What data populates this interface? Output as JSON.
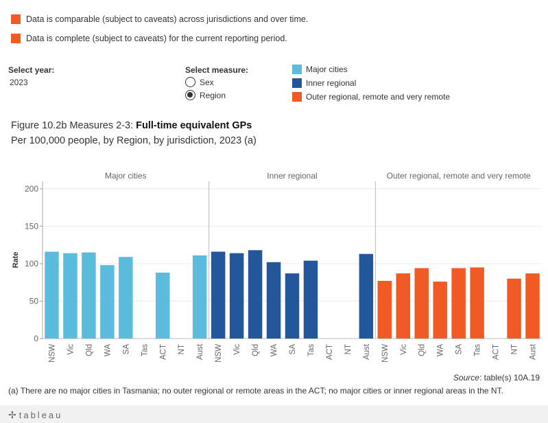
{
  "caveats": [
    "Data is comparable (subject to caveats) across jurisdictions and over time.",
    "Data is complete (subject to caveats) for the current reporting period."
  ],
  "caveat_color": "#f15a24",
  "controls": {
    "year_label": "Select year:",
    "year_value": "2023",
    "measure_label": "Select measure:",
    "measure_options": [
      "Sex",
      "Region"
    ],
    "measure_selected": "Region"
  },
  "legend": [
    {
      "label": "Major cities",
      "color": "#5bbcdd"
    },
    {
      "label": "Inner regional",
      "color": "#24569b"
    },
    {
      "label": "Outer regional, remote and very remote",
      "color": "#f15a24"
    }
  ],
  "figure": {
    "title_prefix": "Figure 10.2b Measures 2-3: ",
    "title_bold": "Full-time equivalent GPs",
    "subtitle": "Per 100,000 people, by Region, by jurisdiction, 2023 (a)"
  },
  "chart_data": {
    "type": "bar",
    "ylabel": "Rate",
    "ylim": [
      0,
      210
    ],
    "yticks": [
      0,
      50,
      100,
      150,
      200
    ],
    "categories": [
      "NSW",
      "Vic",
      "Qld",
      "WA",
      "SA",
      "Tas",
      "ACT",
      "NT",
      "Aust"
    ],
    "panels": [
      {
        "name": "Major cities",
        "color": "#5bbcdd",
        "values": [
          116,
          114,
          115,
          98,
          109,
          null,
          88,
          null,
          111
        ]
      },
      {
        "name": "Inner regional",
        "color": "#24569b",
        "values": [
          116,
          114,
          118,
          102,
          87,
          104,
          null,
          null,
          113
        ]
      },
      {
        "name": "Outer regional, remote and very remote",
        "color": "#f15a24",
        "values": [
          77,
          87,
          94,
          76,
          94,
          95,
          null,
          80,
          87
        ]
      }
    ],
    "grid": true
  },
  "source": {
    "label": "Source",
    "text": ": table(s) 10A.19"
  },
  "footnote": "(a) There are no major cities in Tasmania; no outer regional or remote areas in the ACT; no major cities or inner regional areas in the NT.",
  "footer": {
    "brand": "tableau",
    "logo_icon": "✢"
  }
}
